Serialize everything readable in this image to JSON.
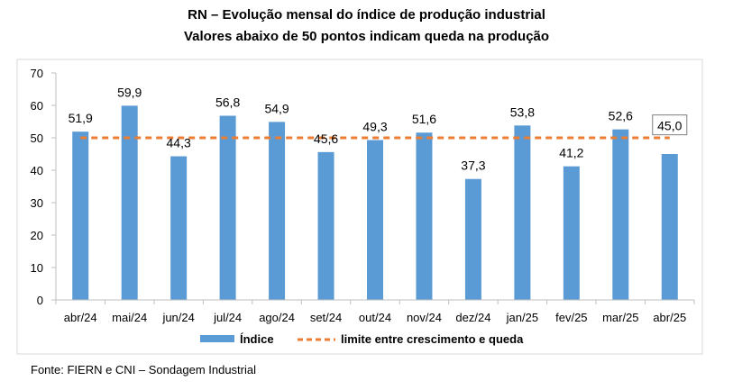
{
  "title": "RN – Evolução mensal do índice de produção industrial",
  "subtitle": "Valores abaixo de 50 pontos indicam queda na produção",
  "source": "Fonte: FIERN e CNI – Sondagem Industrial",
  "colors": {
    "bar": "#5B9BD5",
    "threshold": "#ED7D31",
    "grid": "#D9D9D9",
    "axis": "#BFBFBF"
  },
  "chart_data": {
    "type": "bar",
    "categories": [
      "abr/24",
      "mai/24",
      "jun/24",
      "jul/24",
      "ago/24",
      "set/24",
      "out/24",
      "nov/24",
      "dez/24",
      "jan/25",
      "fev/25",
      "mar/25",
      "abr/25"
    ],
    "series": [
      {
        "name": "Índice",
        "type": "bar",
        "values": [
          51.9,
          59.9,
          44.3,
          56.8,
          54.9,
          45.6,
          49.3,
          51.6,
          37.3,
          53.8,
          41.2,
          52.6,
          45.0
        ],
        "labels": [
          "51,9",
          "59,9",
          "44,3",
          "56,8",
          "54,9",
          "45,6",
          "49,3",
          "51,6",
          "37,3",
          "53,8",
          "41,2",
          "52,6",
          "45,0"
        ]
      },
      {
        "name": "limite entre crescimento e queda",
        "type": "line",
        "style": "dashed",
        "values": [
          50,
          50,
          50,
          50,
          50,
          50,
          50,
          50,
          50,
          50,
          50,
          50,
          50
        ]
      }
    ],
    "ylim": [
      0,
      70
    ],
    "yticks": [
      0,
      10,
      20,
      30,
      40,
      50,
      60,
      70
    ],
    "grid": false,
    "legend": "bottom",
    "boxed_label_index": 12
  }
}
